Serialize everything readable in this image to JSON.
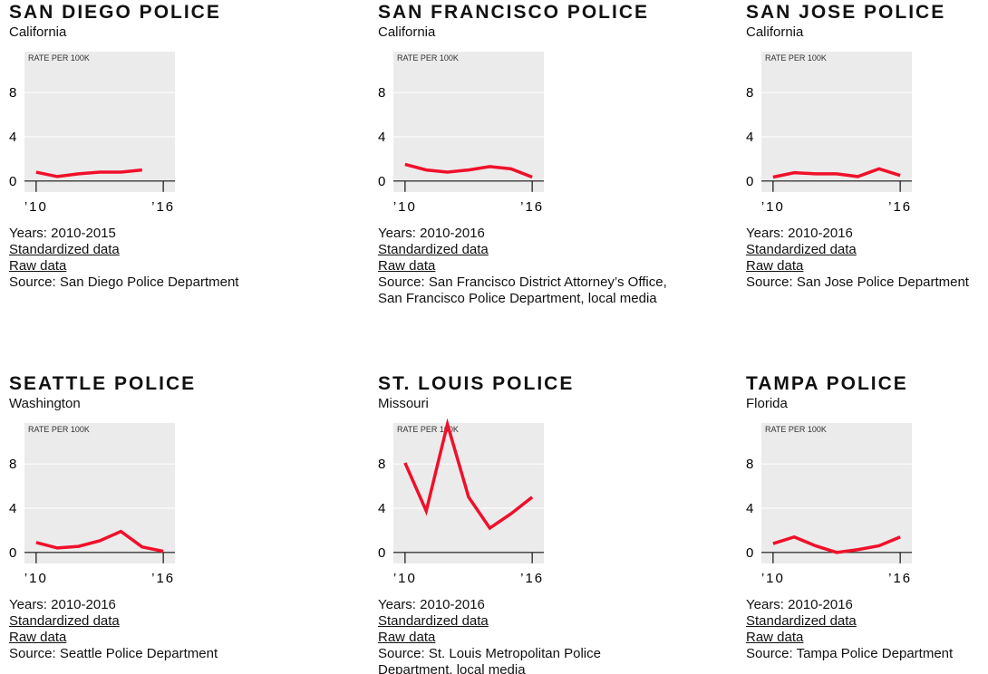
{
  "chart_data": [
    {
      "type": "line",
      "title": "SAN DIEGO POLICE",
      "subtitle": "California",
      "ylabel": "RATE PER 100K",
      "color": "#f0102a",
      "x": [
        2010,
        2011,
        2012,
        2013,
        2014,
        2015
      ],
      "values": [
        0.8,
        0.4,
        0.65,
        0.8,
        0.8,
        1.0
      ],
      "xlim": [
        2009.45,
        2016.55
      ],
      "ylim": [
        -1,
        11.7
      ],
      "xticks": [
        {
          "value": 2010,
          "label": "’10"
        },
        {
          "value": 2016,
          "label": "’16"
        }
      ],
      "yticks": [
        0,
        4,
        8
      ],
      "years": "Years: 2010-2015",
      "links": [
        "Standardized data",
        "Raw data"
      ],
      "source": "Source: San Diego Police Department"
    },
    {
      "type": "line",
      "title": "SAN FRANCISCO POLICE",
      "subtitle": "California",
      "ylabel": "RATE PER 100K",
      "color": "#f0102a",
      "x": [
        2010,
        2011,
        2012,
        2013,
        2014,
        2015,
        2016
      ],
      "values": [
        1.5,
        1.0,
        0.8,
        1.0,
        1.3,
        1.1,
        0.35
      ],
      "xlim": [
        2009.45,
        2016.55
      ],
      "ylim": [
        -1,
        11.7
      ],
      "xticks": [
        {
          "value": 2010,
          "label": "’10"
        },
        {
          "value": 2016,
          "label": "’16"
        }
      ],
      "yticks": [
        0,
        4,
        8
      ],
      "years": "Years: 2010-2016",
      "links": [
        "Standardized data",
        "Raw data"
      ],
      "source": "Source: San Francisco District Attorney’s Office, San Francisco Police Department, local media"
    },
    {
      "type": "line",
      "title": "SAN JOSE POLICE",
      "subtitle": "California",
      "ylabel": "RATE PER 100K",
      "color": "#f0102a",
      "x": [
        2010,
        2011,
        2012,
        2013,
        2014,
        2015,
        2016
      ],
      "values": [
        0.35,
        0.75,
        0.65,
        0.65,
        0.4,
        1.1,
        0.5
      ],
      "xlim": [
        2009.45,
        2016.55
      ],
      "ylim": [
        -1,
        11.7
      ],
      "xticks": [
        {
          "value": 2010,
          "label": "’10"
        },
        {
          "value": 2016,
          "label": "’16"
        }
      ],
      "yticks": [
        0,
        4,
        8
      ],
      "years": "Years: 2010-2016",
      "links": [
        "Standardized data",
        "Raw data"
      ],
      "source": "Source: San Jose Police Department"
    },
    {
      "type": "line",
      "title": "SEATTLE POLICE",
      "subtitle": "Washington",
      "ylabel": "RATE PER 100K",
      "color": "#f0102a",
      "x": [
        2010,
        2011,
        2012,
        2013,
        2014,
        2015,
        2016
      ],
      "values": [
        0.9,
        0.4,
        0.55,
        1.05,
        1.9,
        0.5,
        0.1
      ],
      "xlim": [
        2009.45,
        2016.55
      ],
      "ylim": [
        -1,
        11.7
      ],
      "xticks": [
        {
          "value": 2010,
          "label": "’10"
        },
        {
          "value": 2016,
          "label": "’16"
        }
      ],
      "yticks": [
        0,
        4,
        8
      ],
      "years": "Years: 2010-2016",
      "links": [
        "Standardized data",
        "Raw data"
      ],
      "source": "Source: Seattle Police Department"
    },
    {
      "type": "line",
      "title": "ST. LOUIS POLICE",
      "subtitle": "Missouri",
      "ylabel": "RATE PER 100K",
      "color": "#f0102a",
      "x": [
        2010,
        2011,
        2012,
        2013,
        2014,
        2015,
        2016
      ],
      "values": [
        8.1,
        3.75,
        11.6,
        5.0,
        2.2,
        3.5,
        5.0
      ],
      "xlim": [
        2009.45,
        2016.55
      ],
      "ylim": [
        -1,
        11.7
      ],
      "xticks": [
        {
          "value": 2010,
          "label": "’10"
        },
        {
          "value": 2016,
          "label": "’16"
        }
      ],
      "yticks": [
        0,
        4,
        8
      ],
      "years": "Years: 2010-2016",
      "links": [
        "Standardized data",
        "Raw data"
      ],
      "source": "Source: St. Louis Metropolitan Police Department, local media"
    },
    {
      "type": "line",
      "title": "TAMPA POLICE",
      "subtitle": "Florida",
      "ylabel": "RATE PER 100K",
      "color": "#f0102a",
      "x": [
        2010,
        2011,
        2012,
        2013,
        2014,
        2015,
        2016
      ],
      "values": [
        0.8,
        1.4,
        0.6,
        0.0,
        0.25,
        0.6,
        1.4
      ],
      "xlim": [
        2009.45,
        2016.55
      ],
      "ylim": [
        -1,
        11.7
      ],
      "xticks": [
        {
          "value": 2010,
          "label": "’10"
        },
        {
          "value": 2016,
          "label": "’16"
        }
      ],
      "yticks": [
        0,
        4,
        8
      ],
      "years": "Years: 2010-2016",
      "links": [
        "Standardized data",
        "Raw data"
      ],
      "source": "Source: Tampa Police Department"
    }
  ]
}
